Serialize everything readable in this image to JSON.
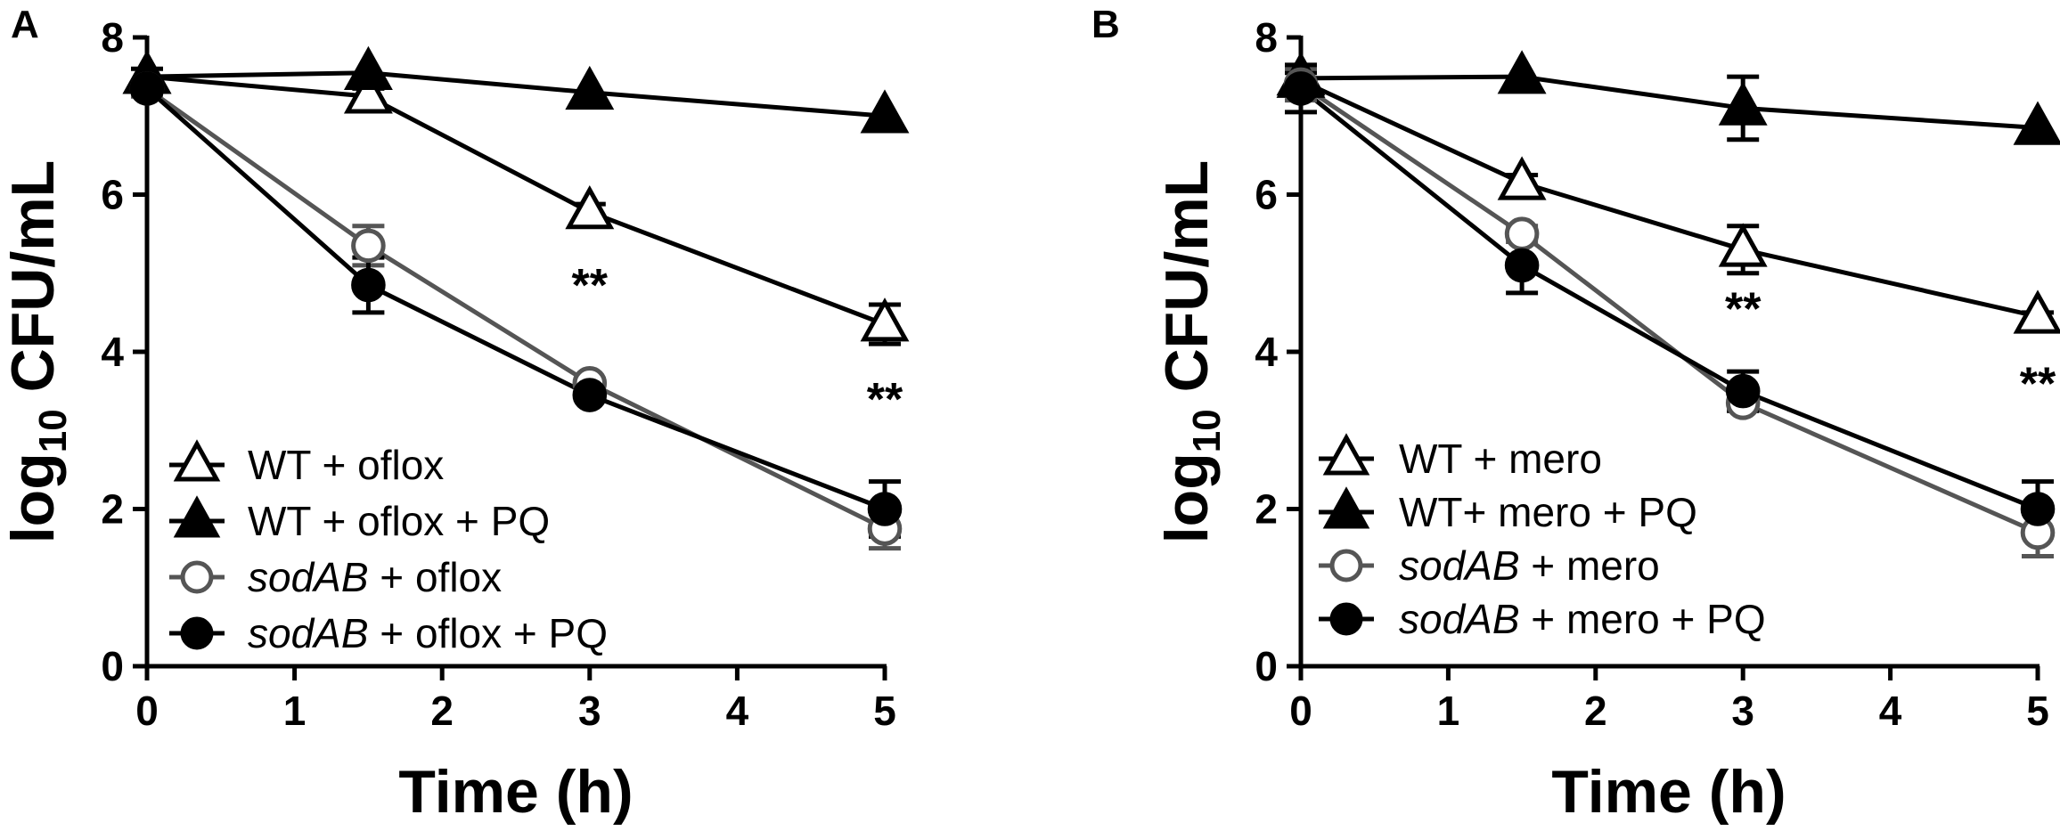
{
  "chart_data": [
    {
      "type": "line",
      "panel": "A",
      "xlabel": "Time (h)",
      "ylabel_main": "log",
      "ylabel_sub": "10",
      "ylabel_tail": " CFU/mL",
      "xlim": [
        0,
        5
      ],
      "ylim": [
        0,
        8
      ],
      "x_ticks": [
        0,
        1,
        2,
        3,
        4,
        5
      ],
      "y_ticks": [
        0,
        2,
        4,
        6,
        8
      ],
      "grid": false,
      "legend_position": "bottom-left",
      "series": [
        {
          "name": "WT + oflox",
          "name_italic": "",
          "name_rest": "WT + oflox",
          "marker": "triangle",
          "fill": "#ffffff",
          "stroke": "#000000",
          "x": [
            0,
            1.5,
            3,
            5
          ],
          "y": [
            7.5,
            7.25,
            5.78,
            4.35
          ],
          "err": [
            0.1,
            0.1,
            0.1,
            0.25
          ]
        },
        {
          "name": "WT + oflox + PQ",
          "name_italic": "",
          "name_rest": "WT + oflox + PQ",
          "marker": "triangle",
          "fill": "#000000",
          "stroke": "#000000",
          "x": [
            0,
            1.5,
            3,
            5
          ],
          "y": [
            7.5,
            7.55,
            7.3,
            7.0
          ],
          "err": [
            0,
            0,
            0,
            0
          ]
        },
        {
          "name": "sodAB + oflox",
          "name_italic": "sodAB",
          "name_rest": " + oflox",
          "marker": "circle",
          "fill": "#ffffff",
          "stroke": "#555555",
          "x": [
            0,
            1.5,
            3,
            5
          ],
          "y": [
            7.35,
            5.35,
            3.6,
            1.75
          ],
          "err": [
            0.1,
            0.25,
            0.05,
            0.25
          ]
        },
        {
          "name": "sodAB + oflox + PQ",
          "name_italic": "sodAB",
          "name_rest": " + oflox + PQ",
          "marker": "circle",
          "fill": "#000000",
          "stroke": "#000000",
          "x": [
            0,
            1.5,
            3,
            5
          ],
          "y": [
            7.35,
            4.85,
            3.45,
            2.0
          ],
          "err": [
            0.05,
            0.35,
            0.05,
            0.35
          ]
        }
      ],
      "annotations": [
        {
          "text": "**",
          "x": 3,
          "y": 4.85
        },
        {
          "text": "**",
          "x": 5,
          "y": 3.4
        }
      ]
    },
    {
      "type": "line",
      "panel": "B",
      "xlabel": "Time (h)",
      "ylabel_main": "log",
      "ylabel_sub": "10",
      "ylabel_tail": " CFU/mL",
      "xlim": [
        0,
        5
      ],
      "ylim": [
        0,
        8
      ],
      "x_ticks": [
        0,
        1,
        2,
        3,
        4,
        5
      ],
      "y_ticks": [
        0,
        2,
        4,
        6,
        8
      ],
      "grid": false,
      "legend_position": "bottom-left",
      "series": [
        {
          "name": "WT + mero",
          "name_italic": "",
          "name_rest": "WT + mero",
          "marker": "triangle",
          "fill": "#ffffff",
          "stroke": "#000000",
          "x": [
            0,
            1.5,
            3,
            5
          ],
          "y": [
            7.45,
            6.15,
            5.3,
            4.45
          ],
          "err": [
            0.1,
            0.1,
            0.3,
            0.05
          ]
        },
        {
          "name": "WT+ mero + PQ",
          "name_italic": "",
          "name_rest": "WT+ mero + PQ",
          "marker": "triangle",
          "fill": "#000000",
          "stroke": "#000000",
          "x": [
            0,
            1.5,
            3,
            5
          ],
          "y": [
            7.48,
            7.5,
            7.1,
            6.85
          ],
          "err": [
            0,
            0,
            0.4,
            0
          ]
        },
        {
          "name": "sodAB + mero",
          "name_italic": "sodAB",
          "name_rest": " + mero",
          "marker": "circle",
          "fill": "#ffffff",
          "stroke": "#555555",
          "x": [
            0,
            1.5,
            3,
            5
          ],
          "y": [
            7.4,
            5.5,
            3.35,
            1.7
          ],
          "err": [
            0.2,
            0.1,
            0.1,
            0.3
          ]
        },
        {
          "name": "sodAB + mero + PQ",
          "name_italic": "sodAB",
          "name_rest": " + mero + PQ",
          "marker": "circle",
          "fill": "#000000",
          "stroke": "#000000",
          "x": [
            0,
            1.5,
            3,
            5
          ],
          "y": [
            7.35,
            5.1,
            3.5,
            2.0
          ],
          "err": [
            0.3,
            0.35,
            0.25,
            0.35
          ]
        }
      ],
      "annotations": [
        {
          "text": "**",
          "x": 3,
          "y": 4.55
        },
        {
          "text": "**",
          "x": 5,
          "y": 3.6
        }
      ]
    }
  ]
}
